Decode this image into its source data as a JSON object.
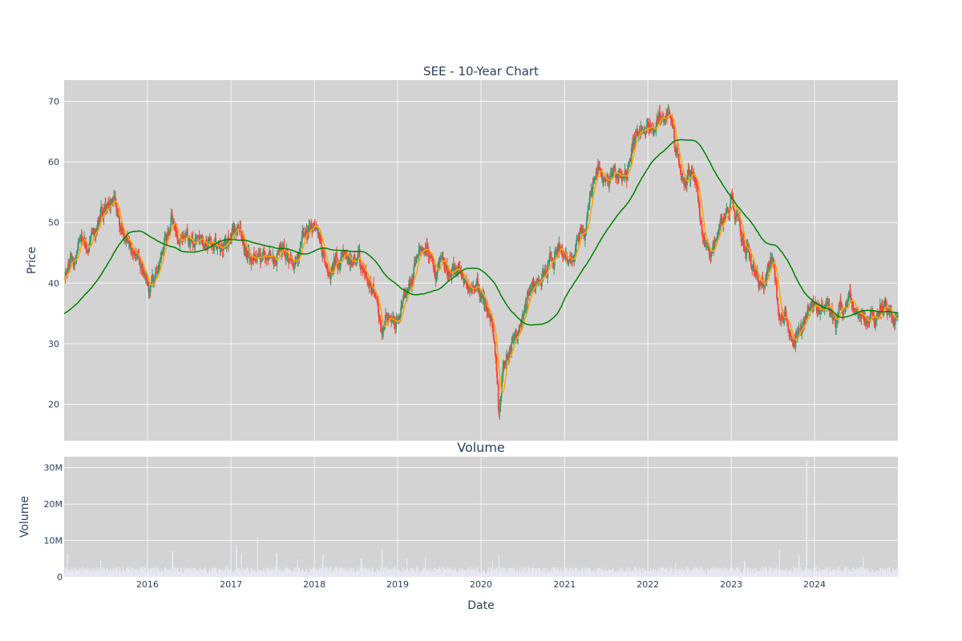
{
  "chart_data": [
    {
      "type": "candlestick",
      "title": "SEE - 10-Year Chart",
      "ylabel": "Price",
      "ylim": [
        14,
        73.5
      ],
      "yticks": [
        20,
        30,
        40,
        50,
        60,
        70
      ],
      "grid": true,
      "colors": {
        "up": "#3d9970",
        "down": "#ff4136",
        "ma_short": "#ffa500",
        "ma_long": "#008000",
        "background": "#d3d3d3"
      },
      "approx_close": [
        [
          "2015-01-01",
          41.5
        ],
        [
          "2015-02-15",
          44
        ],
        [
          "2015-03-15",
          47
        ],
        [
          "2015-04-15",
          45
        ],
        [
          "2015-05-15",
          48
        ],
        [
          "2015-06-15",
          51.5
        ],
        [
          "2015-07-15",
          52
        ],
        [
          "2015-08-10",
          54.5
        ],
        [
          "2015-09-01",
          51
        ],
        [
          "2015-10-01",
          48
        ],
        [
          "2015-11-01",
          44.5
        ],
        [
          "2015-12-01",
          42.5
        ],
        [
          "2016-01-15",
          39.5
        ],
        [
          "2016-02-15",
          43
        ],
        [
          "2016-03-15",
          46.5
        ],
        [
          "2016-04-15",
          49.5
        ],
        [
          "2016-05-15",
          47
        ],
        [
          "2016-06-15",
          48
        ],
        [
          "2016-07-15",
          46.5
        ],
        [
          "2016-08-15",
          47.5
        ],
        [
          "2016-09-15",
          46
        ],
        [
          "2016-10-15",
          46.5
        ],
        [
          "2016-11-15",
          45.5
        ],
        [
          "2016-12-15",
          47
        ],
        [
          "2017-01-15",
          48
        ],
        [
          "2017-02-15",
          47
        ],
        [
          "2017-03-15",
          43.5
        ],
        [
          "2017-04-15",
          44
        ],
        [
          "2017-05-15",
          43.5
        ],
        [
          "2017-06-15",
          45
        ],
        [
          "2017-07-15",
          44
        ],
        [
          "2017-08-15",
          45
        ],
        [
          "2017-09-15",
          43.5
        ],
        [
          "2017-10-15",
          44.5
        ],
        [
          "2017-11-15",
          48
        ],
        [
          "2017-12-15",
          49.5
        ],
        [
          "2018-01-10",
          48.5
        ],
        [
          "2018-02-01",
          44
        ],
        [
          "2018-03-01",
          42.5
        ],
        [
          "2018-04-01",
          44
        ],
        [
          "2018-05-01",
          44.5
        ],
        [
          "2018-06-01",
          43.5
        ],
        [
          "2018-07-01",
          44
        ],
        [
          "2018-08-01",
          42.5
        ],
        [
          "2018-09-01",
          40.5
        ],
        [
          "2018-10-01",
          38.5
        ],
        [
          "2018-10-25",
          32
        ],
        [
          "2018-11-15",
          35.5
        ],
        [
          "2018-12-20",
          33.5
        ],
        [
          "2019-01-15",
          36
        ],
        [
          "2019-02-15",
          39.5
        ],
        [
          "2019-03-15",
          44
        ],
        [
          "2019-04-15",
          46
        ],
        [
          "2019-05-15",
          45.5
        ],
        [
          "2019-06-15",
          41.5
        ],
        [
          "2019-07-15",
          43.5
        ],
        [
          "2019-08-15",
          41
        ],
        [
          "2019-09-15",
          43
        ],
        [
          "2019-10-15",
          41
        ],
        [
          "2019-11-15",
          38.5
        ],
        [
          "2019-12-15",
          39
        ],
        [
          "2020-01-15",
          37.5
        ],
        [
          "2020-02-15",
          35
        ],
        [
          "2020-03-05",
          29
        ],
        [
          "2020-03-20",
          18
        ],
        [
          "2020-04-10",
          27
        ],
        [
          "2020-05-10",
          29.5
        ],
        [
          "2020-06-10",
          31.5
        ],
        [
          "2020-07-10",
          35
        ],
        [
          "2020-08-01",
          38.5
        ],
        [
          "2020-09-01",
          40.5
        ],
        [
          "2020-10-01",
          40.5
        ],
        [
          "2020-11-01",
          43.5
        ],
        [
          "2020-12-01",
          45.5
        ],
        [
          "2021-01-01",
          45
        ],
        [
          "2021-02-01",
          44
        ],
        [
          "2021-03-01",
          46
        ],
        [
          "2021-04-01",
          48.5
        ],
        [
          "2021-05-01",
          56
        ],
        [
          "2021-06-01",
          58.5
        ],
        [
          "2021-07-01",
          57
        ],
        [
          "2021-08-01",
          59
        ],
        [
          "2021-09-01",
          58
        ],
        [
          "2021-10-01",
          59.5
        ],
        [
          "2021-11-01",
          64
        ],
        [
          "2021-12-01",
          66
        ],
        [
          "2022-01-01",
          67
        ],
        [
          "2022-02-01",
          65.5
        ],
        [
          "2022-03-01",
          68
        ],
        [
          "2022-04-01",
          67.5
        ],
        [
          "2022-05-01",
          61
        ],
        [
          "2022-06-01",
          57
        ],
        [
          "2022-07-01",
          58
        ],
        [
          "2022-08-01",
          56.5
        ],
        [
          "2022-09-01",
          47
        ],
        [
          "2022-10-01",
          44
        ],
        [
          "2022-11-01",
          48
        ],
        [
          "2022-12-01",
          51
        ],
        [
          "2023-01-01",
          53.5
        ],
        [
          "2023-02-01",
          51
        ],
        [
          "2023-03-01",
          46.5
        ],
        [
          "2023-04-01",
          43.5
        ],
        [
          "2023-05-01",
          39.5
        ],
        [
          "2023-06-01",
          40
        ],
        [
          "2023-07-01",
          44.5
        ],
        [
          "2023-08-01",
          35
        ],
        [
          "2023-09-01",
          33
        ],
        [
          "2023-10-01",
          30
        ],
        [
          "2023-11-01",
          32.5
        ],
        [
          "2023-12-01",
          36
        ],
        [
          "2024-01-01",
          36
        ],
        [
          "2024-02-01",
          35.5
        ],
        [
          "2024-03-01",
          35.5
        ],
        [
          "2024-04-01",
          33
        ],
        [
          "2024-05-01",
          36
        ],
        [
          "2024-06-01",
          38
        ],
        [
          "2024-07-01",
          35.5
        ],
        [
          "2024-08-01",
          35
        ],
        [
          "2024-09-01",
          34.5
        ],
        [
          "2024-10-01",
          35.5
        ],
        [
          "2024-11-01",
          36
        ],
        [
          "2024-12-31",
          34
        ]
      ]
    },
    {
      "type": "bar",
      "title": "Volume",
      "xlabel": "Date",
      "ylabel": "Volume",
      "ylim": [
        0,
        33000000
      ],
      "yticks": [
        0,
        10000000,
        20000000,
        30000000
      ],
      "ytick_labels": [
        "0",
        "10M",
        "20M",
        "30M"
      ],
      "xticks": [
        "2016-01-01",
        "2017-01-01",
        "2018-01-01",
        "2019-01-01",
        "2020-01-01",
        "2021-01-01",
        "2022-01-01",
        "2023-01-01",
        "2024-01-01"
      ],
      "xtick_labels": [
        "2016",
        "2017",
        "2018",
        "2019",
        "2020",
        "2021",
        "2022",
        "2023",
        "2024"
      ],
      "xlim": [
        "2015-01-01",
        "2024-12-31"
      ],
      "grid": true,
      "bar_color": "#e8e8f4",
      "background": "#d3d3d3",
      "typical_volume": 2000000,
      "spikes": [
        [
          "2015-01-15",
          6500000
        ],
        [
          "2015-06-10",
          4500000
        ],
        [
          "2015-08-15",
          5000000
        ],
        [
          "2016-04-20",
          7000000
        ],
        [
          "2017-01-25",
          8500000
        ],
        [
          "2017-02-15",
          6500000
        ],
        [
          "2017-04-26",
          11000000
        ],
        [
          "2017-07-20",
          6500000
        ],
        [
          "2017-10-20",
          5000000
        ],
        [
          "2018-02-07",
          6000000
        ],
        [
          "2018-07-25",
          5000000
        ],
        [
          "2018-10-25",
          7500000
        ],
        [
          "2019-02-10",
          5000000
        ],
        [
          "2019-05-02",
          5500000
        ],
        [
          "2020-02-20",
          4500000
        ],
        [
          "2020-03-20",
          6500000
        ],
        [
          "2021-05-01",
          4500000
        ],
        [
          "2022-05-01",
          4000000
        ],
        [
          "2023-03-01",
          4500000
        ],
        [
          "2023-08-01",
          7500000
        ],
        [
          "2023-10-25",
          6000000
        ],
        [
          "2023-11-28",
          32000000
        ],
        [
          "2024-08-01",
          5500000
        ],
        [
          "2024-10-20",
          4000000
        ]
      ]
    }
  ]
}
